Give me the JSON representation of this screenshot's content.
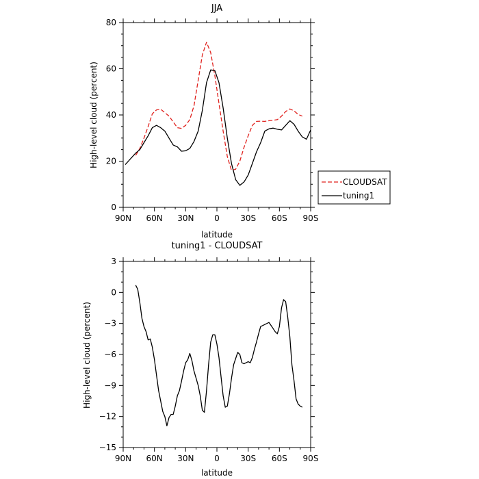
{
  "chart_data": [
    {
      "type": "line",
      "title": "JJA",
      "xlabel": "latitude",
      "ylabel": "High-level cloud (percent)",
      "xlim": [
        90,
        -90
      ],
      "ylim": [
        0,
        80
      ],
      "x_ticks": [
        90,
        60,
        30,
        0,
        -30,
        -60,
        -90
      ],
      "x_tick_labels": [
        "90N",
        "60N",
        "30N",
        "0",
        "30S",
        "60S",
        "90S"
      ],
      "y_ticks": [
        0,
        20,
        40,
        60,
        80
      ],
      "y_tick_labels": [
        "0",
        "20",
        "40",
        "60",
        "80"
      ],
      "legend": {
        "placement": "right-outside",
        "entries": [
          "CLOUDSAT",
          "tuning1"
        ]
      },
      "series": [
        {
          "name": "CLOUDSAT",
          "color": "#e0201c",
          "dash": "dashed",
          "x": [
            78,
            74,
            70,
            66,
            62,
            58,
            54,
            50,
            46,
            42,
            38,
            34,
            30,
            26,
            22,
            18,
            14,
            10,
            6,
            2,
            -2,
            -6,
            -10,
            -14,
            -18,
            -22,
            -26,
            -30,
            -34,
            -38,
            -42,
            -46,
            -50,
            -54,
            -58,
            -62,
            -66,
            -70,
            -74,
            -78,
            -82
          ],
          "y": [
            22.5,
            25.5,
            30,
            35,
            40.5,
            42.2,
            42.5,
            41,
            39.5,
            37,
            34.5,
            34.2,
            35.5,
            38,
            44,
            55,
            66,
            71.5,
            67,
            57,
            45,
            33,
            22,
            16,
            16.5,
            20,
            26,
            31,
            35.5,
            37.2,
            37.3,
            37.2,
            37.5,
            37.7,
            38,
            39.5,
            41.5,
            42.6,
            41.8,
            40.2,
            39.5
          ]
        },
        {
          "name": "tuning1",
          "color": "#000000",
          "dash": "solid",
          "x": [
            88,
            85,
            82,
            78,
            74,
            70,
            66,
            62,
            58,
            54,
            50,
            46,
            42,
            38,
            34,
            30,
            26,
            22,
            18,
            14,
            10,
            6,
            2,
            -2,
            -6,
            -10,
            -14,
            -18,
            -22,
            -26,
            -30,
            -34,
            -38,
            -42,
            -46,
            -50,
            -54,
            -58,
            -62,
            -66,
            -70,
            -74,
            -78,
            -82,
            -86,
            -90
          ],
          "y": [
            18.5,
            20,
            21.5,
            23.5,
            25,
            28,
            31,
            34.5,
            35.5,
            34.5,
            33,
            30,
            27,
            26.2,
            24.3,
            24.5,
            25.5,
            28.5,
            33,
            42,
            54,
            59.5,
            59.2,
            54,
            43,
            30,
            19,
            12,
            9.5,
            11,
            14,
            19,
            24,
            28,
            33,
            34,
            34.3,
            33.8,
            33.5,
            35.5,
            37.5,
            36,
            33,
            30.5,
            29.5,
            33.5
          ]
        }
      ]
    },
    {
      "type": "line",
      "title": "tuning1 - CLOUDSAT",
      "xlabel": "latitude",
      "ylabel": "High-level cloud (percent)",
      "xlim": [
        90,
        -90
      ],
      "ylim": [
        -15,
        3
      ],
      "x_ticks": [
        90,
        60,
        30,
        0,
        -30,
        -60,
        -90
      ],
      "x_tick_labels": [
        "90N",
        "60N",
        "30N",
        "0",
        "30S",
        "60S",
        "90S"
      ],
      "y_ticks": [
        3,
        0,
        -3,
        -6,
        -9,
        -12,
        -15
      ],
      "y_tick_labels": [
        "3",
        "0",
        "−3",
        "−6",
        "−9",
        "−12",
        "−15"
      ],
      "series": [
        {
          "name": "tuning1 - CLOUDSAT",
          "color": "#000000",
          "dash": "solid",
          "x": [
            78,
            76,
            74,
            72,
            70,
            68,
            66,
            64,
            62,
            60,
            58,
            56,
            54,
            52,
            50,
            48,
            46,
            44,
            42,
            40,
            38,
            36,
            34,
            32,
            30,
            28,
            26,
            24,
            22,
            20,
            18,
            16,
            14,
            12,
            10,
            8,
            6,
            4,
            2,
            0,
            -2,
            -4,
            -6,
            -8,
            -10,
            -12,
            -14,
            -16,
            -18,
            -20,
            -22,
            -24,
            -26,
            -28,
            -30,
            -32,
            -34,
            -36,
            -38,
            -40,
            -42,
            -44,
            -46,
            -48,
            -50,
            -52,
            -54,
            -56,
            -58,
            -60,
            -62,
            -64,
            -66,
            -68,
            -70,
            -72,
            -74,
            -76,
            -78,
            -80,
            -82
          ],
          "y": [
            0.7,
            0.3,
            -1,
            -2.5,
            -3.3,
            -3.8,
            -4.6,
            -4.5,
            -5.3,
            -6.5,
            -8,
            -9.5,
            -10.5,
            -11.5,
            -12,
            -12.9,
            -12.1,
            -11.8,
            -11.8,
            -11,
            -10,
            -9.5,
            -8.6,
            -7.6,
            -6.8,
            -6.5,
            -5.9,
            -6.6,
            -7.6,
            -8.3,
            -9,
            -10,
            -11.4,
            -11.6,
            -9.5,
            -7,
            -4.8,
            -4.1,
            -4.1,
            -5,
            -6.3,
            -8.2,
            -10,
            -11.1,
            -11,
            -9.8,
            -8.3,
            -7,
            -6.4,
            -5.8,
            -6,
            -6.8,
            -6.9,
            -6.8,
            -6.7,
            -6.8,
            -6.3,
            -5.5,
            -4.8,
            -4,
            -3.3,
            -3.2,
            -3.1,
            -3,
            -2.9,
            -3.2,
            -3.5,
            -3.8,
            -4,
            -3.3,
            -1.5,
            -0.7,
            -0.9,
            -2.4,
            -4.3,
            -7,
            -8.5,
            -10.3,
            -10.8,
            -11,
            -11.1
          ]
        }
      ]
    }
  ]
}
